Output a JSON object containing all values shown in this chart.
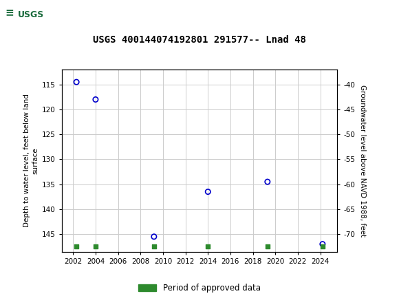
{
  "title": "USGS 400144074192801 291577-- Lnad 48",
  "scatter_x": [
    2002.3,
    2004.0,
    2009.2,
    2014.0,
    2019.3,
    2024.2
  ],
  "scatter_y": [
    114.5,
    118.0,
    145.5,
    136.5,
    134.5,
    147.0
  ],
  "green_squares_x": [
    2002.3,
    2004.0,
    2009.2,
    2014.0,
    2019.3,
    2024.2
  ],
  "green_squares_y": [
    147.4,
    147.4,
    147.4,
    147.4,
    147.4,
    147.4
  ],
  "ylim_left": [
    148.5,
    112.0
  ],
  "xlim": [
    2001.0,
    2025.5
  ],
  "xticks": [
    2002,
    2004,
    2006,
    2008,
    2010,
    2012,
    2014,
    2016,
    2018,
    2020,
    2022,
    2024
  ],
  "yticks_left": [
    115,
    120,
    125,
    130,
    135,
    140,
    145
  ],
  "ylabel_left": "Depth to water level, feet below land\nsurface",
  "ylabel_right": "Groundwater level above NAVD 1988, feet",
  "legend_label": "Period of approved data",
  "header_color": "#1a6b3c",
  "scatter_color": "#0000cc",
  "green_color": "#2d8a2d",
  "bg_color": "#ffffff",
  "grid_color": "#cccccc",
  "right_yticks_labels": [
    "-40",
    "-45",
    "-50",
    "-55",
    "-60",
    "-65",
    "-70"
  ]
}
